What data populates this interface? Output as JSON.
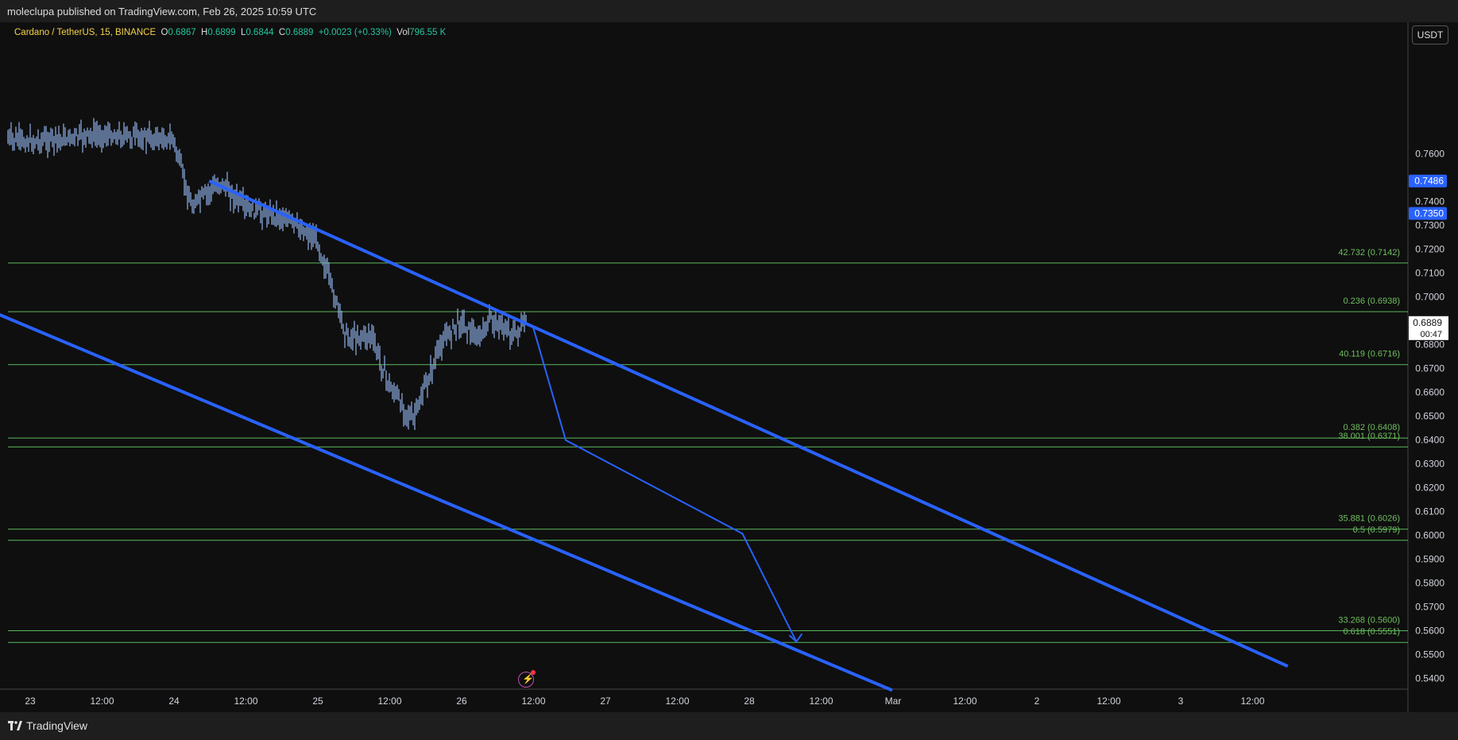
{
  "header": {
    "publisher_text": "moleclupa published on TradingView.com, Feb 26, 2025 10:59 UTC"
  },
  "legend": {
    "symbol": "Cardano / TetherUS, 15, BINANCE",
    "o_label": "O",
    "o_value": "0.6867",
    "h_label": "H",
    "h_value": "0.6899",
    "l_label": "L",
    "l_value": "0.6844",
    "c_label": "C",
    "c_value": "0.6889",
    "change": "+0.0023 (+0.33%)",
    "vol_label": "Vol",
    "vol_value": "796.55 K"
  },
  "currency_button": "USDT",
  "footer": {
    "brand": "TradingView"
  },
  "colors": {
    "background": "#0f0f0f",
    "candles": "#8fb0e8",
    "trendline": "#2962ff",
    "fib": "#5cb85c",
    "fib_text": "#6fbf5f",
    "price_tag": "#2962ff"
  },
  "chart_data": {
    "type": "candlestick",
    "title": "Cardano / TetherUS, 15, BINANCE",
    "ylim": [
      0.535,
      0.7695
    ],
    "y_ticks": [
      "0.7600",
      "0.7400",
      "0.7300",
      "0.7200",
      "0.7100",
      "0.7000",
      "0.6800",
      "0.6700",
      "0.6600",
      "0.6500",
      "0.6400",
      "0.6300",
      "0.6200",
      "0.6100",
      "0.6000",
      "0.5900",
      "0.5800",
      "0.5700",
      "0.5600",
      "0.5500",
      "0.5400"
    ],
    "x_ticks": [
      "23",
      "12:00",
      "24",
      "12:00",
      "25",
      "12:00",
      "26",
      "12:00",
      "27",
      "12:00",
      "28",
      "12:00",
      "Mar",
      "12:00",
      "2",
      "12:00",
      "3",
      "12:00"
    ],
    "price_tags": [
      {
        "label": "0.7486",
        "value": 0.7486,
        "style": "blue"
      },
      {
        "label": "0.7350",
        "value": 0.735,
        "style": "blue"
      },
      {
        "label": "0.6889",
        "sublabel": "00:47",
        "value": 0.6889,
        "style": "current"
      }
    ],
    "fib_levels": [
      {
        "label": "42.732 (0.7142)",
        "value": 0.7142
      },
      {
        "label": "0.236 (0.6938)",
        "value": 0.6938
      },
      {
        "label": "40.119 (0.6716)",
        "value": 0.6716
      },
      {
        "label": "0.382 (0.6408)",
        "value": 0.6408
      },
      {
        "label": "38.001 (0.6371)",
        "value": 0.6371
      },
      {
        "label": "35.881 (0.6026)",
        "value": 0.6026
      },
      {
        "label": "0.5 (0.5979)",
        "value": 0.5979
      },
      {
        "label": "33.268 (0.5600)",
        "value": 0.56
      },
      {
        "label": "0.618 (0.5551)",
        "value": 0.5551
      }
    ],
    "price_path": [
      [
        "22 00:00",
        0.772
      ],
      [
        "23 00:00",
        0.765
      ],
      [
        "23 12:00",
        0.768
      ],
      [
        "24 00:00",
        0.766
      ],
      [
        "24 03:00",
        0.738
      ],
      [
        "24 08:00",
        0.748
      ],
      [
        "24 12:00",
        0.737
      ],
      [
        "24 18:00",
        0.734
      ],
      [
        "25 00:00",
        0.724
      ],
      [
        "25 05:00",
        0.683
      ],
      [
        "25 09:00",
        0.684
      ],
      [
        "25 12:00",
        0.663
      ],
      [
        "25 16:00",
        0.648
      ],
      [
        "25 21:00",
        0.682
      ],
      [
        "26 00:00",
        0.69
      ],
      [
        "26 03:00",
        0.682
      ],
      [
        "26 05:00",
        0.691
      ],
      [
        "26 09:00",
        0.684
      ],
      [
        "26 11:00",
        0.6889
      ]
    ],
    "drawings": {
      "channel_upper": [
        [
          "24 06:00",
          0.7486
        ],
        [
          "Mar 3 18:00",
          0.5451
        ]
      ],
      "channel_lower": [
        [
          "22 18:00",
          0.6936
        ],
        [
          "Mar 1 00:00",
          0.535
        ]
      ],
      "projection_path": [
        [
          "26 12:00",
          0.6879
        ],
        [
          "26 17:30",
          0.6399
        ],
        [
          "27 23:00",
          0.6007
        ],
        [
          "28 08:00",
          0.5554
        ]
      ]
    }
  }
}
